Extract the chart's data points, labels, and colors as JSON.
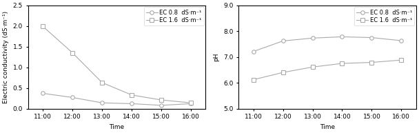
{
  "time_labels": [
    "11:00",
    "12:00",
    "13:00",
    "14:00",
    "15:00",
    "16:00"
  ],
  "ec_x": [
    0,
    1,
    2,
    3,
    4,
    5
  ],
  "ec_08_values": [
    0.37,
    0.27,
    0.14,
    0.12,
    0.08,
    0.12
  ],
  "ec_16_values": [
    1.99,
    1.35,
    0.63,
    0.33,
    0.21,
    0.14
  ],
  "ph_08_values": [
    7.21,
    7.62,
    7.73,
    7.78,
    7.75,
    7.63
  ],
  "ph_16_values": [
    6.12,
    6.4,
    6.61,
    6.75,
    6.79,
    6.88
  ],
  "ec_ylim": [
    0.0,
    2.5
  ],
  "ec_yticks": [
    0.0,
    0.5,
    1.0,
    1.5,
    2.0,
    2.5
  ],
  "ph_ylim": [
    5.0,
    9.0
  ],
  "ph_yticks": [
    5.0,
    6.0,
    7.0,
    8.0,
    9.0
  ],
  "line_color": "#aaaaaa",
  "marker_circle": "o",
  "marker_square": "s",
  "legend_ec08": "-○- EC 0.8  dS·m⁻¹",
  "legend_ec16": "-□- EC 1.6  dS·m⁻¹",
  "xlabel": "Time",
  "ylabel_ec": "Electric conductivity (dS·m⁻¹)",
  "ylabel_ph": "pH",
  "background_color": "#ffffff",
  "marker_size": 4,
  "linewidth": 0.8,
  "font_size": 6.5
}
